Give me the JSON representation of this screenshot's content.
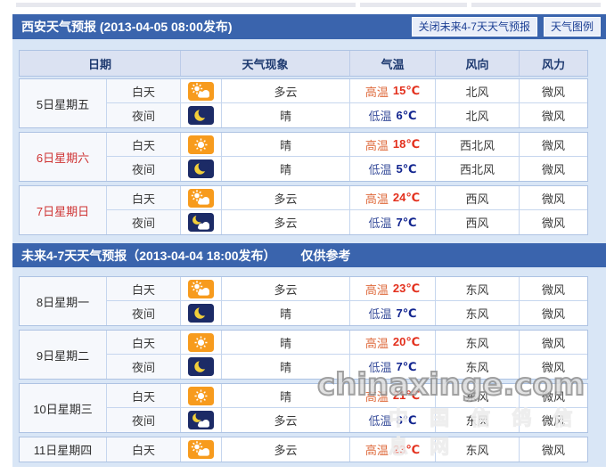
{
  "colors": {
    "bar_blue": "#3a64ad",
    "container_bg": "#d9e6f6",
    "header_row_bg": "#dbe2f2",
    "border": "#aec3e3",
    "high_temp_red": "#e3301d",
    "low_temp_blue": "#12258f",
    "weekend_red": "#cf3434",
    "icon_orange": "#f79b1d",
    "icon_navy": "#1c2b66",
    "moon_yellow": "#f2cf3a"
  },
  "header": {
    "title": "西安天气预报  (2013-04-05  08:00发布)",
    "close_button": "关闭未来4-7天天气预报",
    "legend_button": "天气图例"
  },
  "table": {
    "columns": [
      "日期",
      "天气现象",
      "气温",
      "风向",
      "风力"
    ]
  },
  "section1_days": [
    {
      "date": "5日星期五",
      "red": false,
      "rows": [
        {
          "part": "白天",
          "icon": "day-cloudy",
          "weather": "多云",
          "temp_label": "高温",
          "temp_value": "15℃",
          "temp_type": "high",
          "wind": "北风",
          "power": "微风"
        },
        {
          "part": "夜间",
          "icon": "night-clear",
          "weather": "晴",
          "temp_label": "低温",
          "temp_value": "6℃",
          "temp_type": "low",
          "wind": "北风",
          "power": "微风"
        }
      ]
    },
    {
      "date": "6日星期六",
      "red": true,
      "rows": [
        {
          "part": "白天",
          "icon": "day-sunny",
          "weather": "晴",
          "temp_label": "高温",
          "temp_value": "18℃",
          "temp_type": "high",
          "wind": "西北风",
          "power": "微风"
        },
        {
          "part": "夜间",
          "icon": "night-clear",
          "weather": "晴",
          "temp_label": "低温",
          "temp_value": "5℃",
          "temp_type": "low",
          "wind": "西北风",
          "power": "微风"
        }
      ]
    },
    {
      "date": "7日星期日",
      "red": true,
      "rows": [
        {
          "part": "白天",
          "icon": "day-cloudy",
          "weather": "多云",
          "temp_label": "高温",
          "temp_value": "24℃",
          "temp_type": "high",
          "wind": "西风",
          "power": "微风"
        },
        {
          "part": "夜间",
          "icon": "night-cloudy",
          "weather": "多云",
          "temp_label": "低温",
          "temp_value": "7℃",
          "temp_type": "low",
          "wind": "西风",
          "power": "微风"
        }
      ]
    }
  ],
  "section2": {
    "title": "未来4-7天天气预报（2013-04-04 18:00发布）",
    "note": "仅供参考"
  },
  "section2_days": [
    {
      "date": "8日星期一",
      "red": false,
      "rows": [
        {
          "part": "白天",
          "icon": "day-cloudy",
          "weather": "多云",
          "temp_label": "高温",
          "temp_value": "23℃",
          "temp_type": "high",
          "wind": "东风",
          "power": "微风"
        },
        {
          "part": "夜间",
          "icon": "night-clear",
          "weather": "晴",
          "temp_label": "低温",
          "temp_value": "7℃",
          "temp_type": "low",
          "wind": "东风",
          "power": "微风"
        }
      ]
    },
    {
      "date": "9日星期二",
      "red": false,
      "rows": [
        {
          "part": "白天",
          "icon": "day-sunny",
          "weather": "晴",
          "temp_label": "高温",
          "temp_value": "20℃",
          "temp_type": "high",
          "wind": "东风",
          "power": "微风"
        },
        {
          "part": "夜间",
          "icon": "night-clear",
          "weather": "晴",
          "temp_label": "低温",
          "temp_value": "7℃",
          "temp_type": "low",
          "wind": "东风",
          "power": "微风"
        }
      ]
    },
    {
      "date": "10日星期三",
      "red": false,
      "rows": [
        {
          "part": "白天",
          "icon": "day-sunny",
          "weather": "晴",
          "temp_label": "高温",
          "temp_value": "21℃",
          "temp_type": "high",
          "wind": "东风",
          "power": "微风"
        },
        {
          "part": "夜间",
          "icon": "night-cloudy",
          "weather": "多云",
          "temp_label": "低温",
          "temp_value": "8℃",
          "temp_type": "low",
          "wind": "东风",
          "power": "微风"
        }
      ]
    },
    {
      "date": "11日星期四",
      "red": false,
      "rows": [
        {
          "part": "白天",
          "icon": "day-cloudy",
          "weather": "多云",
          "temp_label": "高温",
          "temp_value": "23℃",
          "temp_type": "high",
          "wind": "东风",
          "power": "微风"
        }
      ]
    }
  ],
  "watermark": {
    "line1": "chinaxinge.com",
    "line2": "中 国 信 鸽 信 息 网"
  }
}
